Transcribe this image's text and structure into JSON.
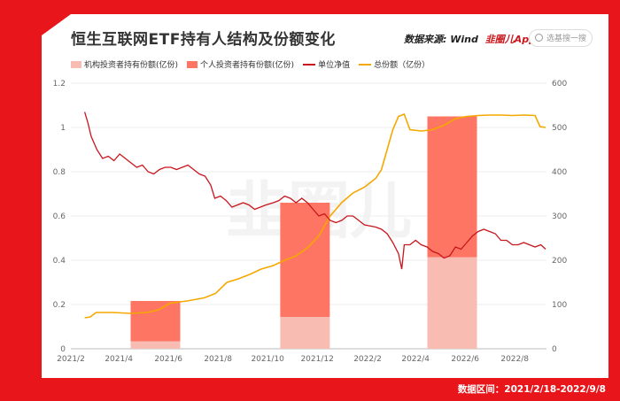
{
  "title": "恒生互联网ETF持有人结构及份额变化",
  "source": "数据来源: Wind",
  "brand": "韭圈儿App",
  "search_placeholder": "选基搜一搜",
  "footer": "数据区间：2021/2/18-2022/9/8",
  "colors": {
    "frame": "#e8161b",
    "inst": "#f9bcb3",
    "indiv": "#ff7563",
    "nav": "#c8161d",
    "total": "#f5a800"
  },
  "chart_data": {
    "type": "bar",
    "x_ticks": [
      "2021/2",
      "2021/4",
      "2021/6",
      "2021/8",
      "2021/10",
      "2021/12",
      "2022/2",
      "2022/4",
      "2022/6",
      "2022/8"
    ],
    "ylim_left": [
      0,
      1.2
    ],
    "yticks_left": [
      "0",
      "0.2",
      "0.4",
      "0.6",
      "0.8",
      "1",
      "1.2"
    ],
    "ylim_right": [
      0,
      600
    ],
    "yticks_right": [
      "0",
      "100",
      "200",
      "300",
      "400",
      "500",
      "600"
    ],
    "legend": [
      "机构投资者持有份额(亿份)",
      "个人投资者持有份额(亿份)",
      "单位净值",
      "总份额（亿份）"
    ],
    "bars": [
      {
        "period": "2021/6",
        "institutional": 17,
        "individual": 91
      },
      {
        "period": "2021/12",
        "institutional": 72,
        "individual": 258
      },
      {
        "period": "2022/6",
        "institutional": 207,
        "individual": 318
      }
    ],
    "nav_series": [
      [
        "2021-02-18",
        1.07
      ],
      [
        "2021-02-22",
        1.02
      ],
      [
        "2021-02-26",
        0.96
      ],
      [
        "2021-03-05",
        0.9
      ],
      [
        "2021-03-12",
        0.86
      ],
      [
        "2021-03-19",
        0.87
      ],
      [
        "2021-03-26",
        0.85
      ],
      [
        "2021-04-02",
        0.88
      ],
      [
        "2021-04-09",
        0.86
      ],
      [
        "2021-04-16",
        0.84
      ],
      [
        "2021-04-23",
        0.82
      ],
      [
        "2021-04-30",
        0.83
      ],
      [
        "2021-05-07",
        0.8
      ],
      [
        "2021-05-14",
        0.79
      ],
      [
        "2021-05-21",
        0.81
      ],
      [
        "2021-05-28",
        0.82
      ],
      [
        "2021-06-04",
        0.82
      ],
      [
        "2021-06-11",
        0.81
      ],
      [
        "2021-06-18",
        0.82
      ],
      [
        "2021-06-25",
        0.83
      ],
      [
        "2021-07-02",
        0.81
      ],
      [
        "2021-07-09",
        0.79
      ],
      [
        "2021-07-16",
        0.78
      ],
      [
        "2021-07-23",
        0.74
      ],
      [
        "2021-07-28",
        0.68
      ],
      [
        "2021-08-04",
        0.69
      ],
      [
        "2021-08-11",
        0.67
      ],
      [
        "2021-08-18",
        0.64
      ],
      [
        "2021-08-25",
        0.65
      ],
      [
        "2021-09-01",
        0.66
      ],
      [
        "2021-09-08",
        0.65
      ],
      [
        "2021-09-15",
        0.63
      ],
      [
        "2021-09-22",
        0.64
      ],
      [
        "2021-09-29",
        0.65
      ],
      [
        "2021-10-08",
        0.66
      ],
      [
        "2021-10-15",
        0.67
      ],
      [
        "2021-10-22",
        0.69
      ],
      [
        "2021-10-29",
        0.68
      ],
      [
        "2021-11-05",
        0.66
      ],
      [
        "2021-11-12",
        0.68
      ],
      [
        "2021-11-19",
        0.66
      ],
      [
        "2021-11-26",
        0.63
      ],
      [
        "2021-12-03",
        0.6
      ],
      [
        "2021-12-10",
        0.61
      ],
      [
        "2021-12-17",
        0.58
      ],
      [
        "2021-12-24",
        0.57
      ],
      [
        "2021-12-31",
        0.58
      ],
      [
        "2022-01-07",
        0.6
      ],
      [
        "2022-01-14",
        0.6
      ],
      [
        "2022-01-21",
        0.58
      ],
      [
        "2022-01-28",
        0.56
      ],
      [
        "2022-02-11",
        0.55
      ],
      [
        "2022-02-18",
        0.54
      ],
      [
        "2022-02-25",
        0.52
      ],
      [
        "2022-03-04",
        0.48
      ],
      [
        "2022-03-11",
        0.43
      ],
      [
        "2022-03-15",
        0.36
      ],
      [
        "2022-03-18",
        0.47
      ],
      [
        "2022-03-25",
        0.47
      ],
      [
        "2022-04-01",
        0.49
      ],
      [
        "2022-04-08",
        0.47
      ],
      [
        "2022-04-15",
        0.46
      ],
      [
        "2022-04-22",
        0.44
      ],
      [
        "2022-04-29",
        0.43
      ],
      [
        "2022-05-06",
        0.41
      ],
      [
        "2022-05-13",
        0.42
      ],
      [
        "2022-05-20",
        0.46
      ],
      [
        "2022-05-27",
        0.45
      ],
      [
        "2022-06-03",
        0.48
      ],
      [
        "2022-06-10",
        0.51
      ],
      [
        "2022-06-17",
        0.53
      ],
      [
        "2022-06-24",
        0.54
      ],
      [
        "2022-07-01",
        0.53
      ],
      [
        "2022-07-08",
        0.52
      ],
      [
        "2022-07-15",
        0.49
      ],
      [
        "2022-07-22",
        0.49
      ],
      [
        "2022-07-29",
        0.47
      ],
      [
        "2022-08-05",
        0.47
      ],
      [
        "2022-08-12",
        0.48
      ],
      [
        "2022-08-19",
        0.47
      ],
      [
        "2022-08-26",
        0.46
      ],
      [
        "2022-09-02",
        0.47
      ],
      [
        "2022-09-08",
        0.45
      ]
    ],
    "total_series": [
      [
        "2021-02-18",
        70
      ],
      [
        "2021-02-25",
        72
      ],
      [
        "2021-03-04",
        82
      ],
      [
        "2021-03-25",
        82
      ],
      [
        "2021-04-15",
        80
      ],
      [
        "2021-05-06",
        82
      ],
      [
        "2021-05-20",
        88
      ],
      [
        "2021-06-03",
        103
      ],
      [
        "2021-06-24",
        108
      ],
      [
        "2021-07-15",
        115
      ],
      [
        "2021-07-29",
        125
      ],
      [
        "2021-08-12",
        150
      ],
      [
        "2021-08-26",
        158
      ],
      [
        "2021-09-09",
        168
      ],
      [
        "2021-09-23",
        180
      ],
      [
        "2021-10-08",
        188
      ],
      [
        "2021-10-22",
        200
      ],
      [
        "2021-11-05",
        210
      ],
      [
        "2021-11-19",
        228
      ],
      [
        "2021-12-03",
        255
      ],
      [
        "2021-12-17",
        300
      ],
      [
        "2021-12-31",
        330
      ],
      [
        "2022-01-14",
        352
      ],
      [
        "2022-01-28",
        365
      ],
      [
        "2022-02-11",
        385
      ],
      [
        "2022-02-18",
        405
      ],
      [
        "2022-02-25",
        450
      ],
      [
        "2022-03-04",
        495
      ],
      [
        "2022-03-11",
        525
      ],
      [
        "2022-03-18",
        530
      ],
      [
        "2022-03-25",
        495
      ],
      [
        "2022-04-08",
        492
      ],
      [
        "2022-04-22",
        495
      ],
      [
        "2022-05-06",
        505
      ],
      [
        "2022-05-20",
        520
      ],
      [
        "2022-06-03",
        525
      ],
      [
        "2022-06-17",
        527
      ],
      [
        "2022-07-01",
        528
      ],
      [
        "2022-07-15",
        528
      ],
      [
        "2022-07-29",
        527
      ],
      [
        "2022-08-12",
        528
      ],
      [
        "2022-08-26",
        527
      ],
      [
        "2022-09-01",
        502
      ],
      [
        "2022-09-08",
        500
      ]
    ]
  }
}
